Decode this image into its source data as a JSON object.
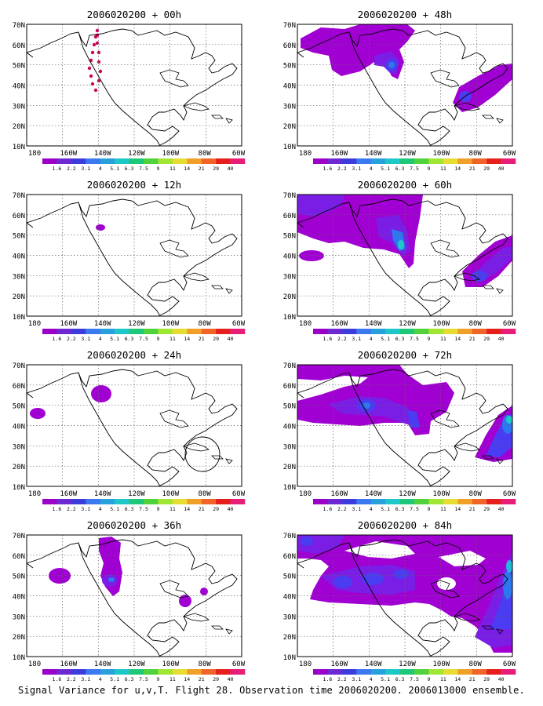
{
  "footer": "Signal Variance for u,v,T. Flight 28. Observation time 2006020200. 2006013000 ensemble.",
  "lat_labels": [
    "70N",
    "60N",
    "50N",
    "40N",
    "30N",
    "20N",
    "10N"
  ],
  "lon_labels": [
    "180",
    "160W",
    "140W",
    "120W",
    "100W",
    "80W",
    "60W"
  ],
  "colorbar": {
    "labels": [
      "1.6",
      "2.2",
      "3.1",
      "4",
      "5.1",
      "6.3",
      "7.5",
      "9",
      "11",
      "14",
      "21",
      "29",
      "40"
    ],
    "colors": [
      "#9b00c8",
      "#6e28d2",
      "#3c3cdc",
      "#3c78f0",
      "#28a0dc",
      "#1ec8c8",
      "#1ec878",
      "#50d23c",
      "#a0e632",
      "#e6dc32",
      "#f0a028",
      "#f06428",
      "#e61e1e",
      "#e61e78"
    ]
  },
  "fill_colors": {
    "purple": "#a000d2",
    "violet": "#7a1ee6",
    "indigo": "#4a3cf0",
    "blue": "#2c78f0",
    "cyan": "#22b8d8",
    "teal": "#1ec8c8",
    "dots": "#d2005a"
  },
  "panels": [
    {
      "title": "2006020200 + 00h",
      "col": 0,
      "row": 0,
      "level": 0
    },
    {
      "title": "2006020200 + 12h",
      "col": 0,
      "row": 1,
      "level": 1
    },
    {
      "title": "2006020200 + 24h",
      "col": 0,
      "row": 2,
      "level": 2
    },
    {
      "title": "2006020200 + 36h",
      "col": 0,
      "row": 3,
      "level": 3
    },
    {
      "title": "2006020200 + 48h",
      "col": 1,
      "row": 0,
      "level": 4
    },
    {
      "title": "2006020200 + 60h",
      "col": 1,
      "row": 1,
      "level": 5
    },
    {
      "title": "2006020200 + 72h",
      "col": 1,
      "row": 2,
      "level": 6
    },
    {
      "title": "2006020200 + 84h",
      "col": 1,
      "row": 3,
      "level": 7
    }
  ]
}
